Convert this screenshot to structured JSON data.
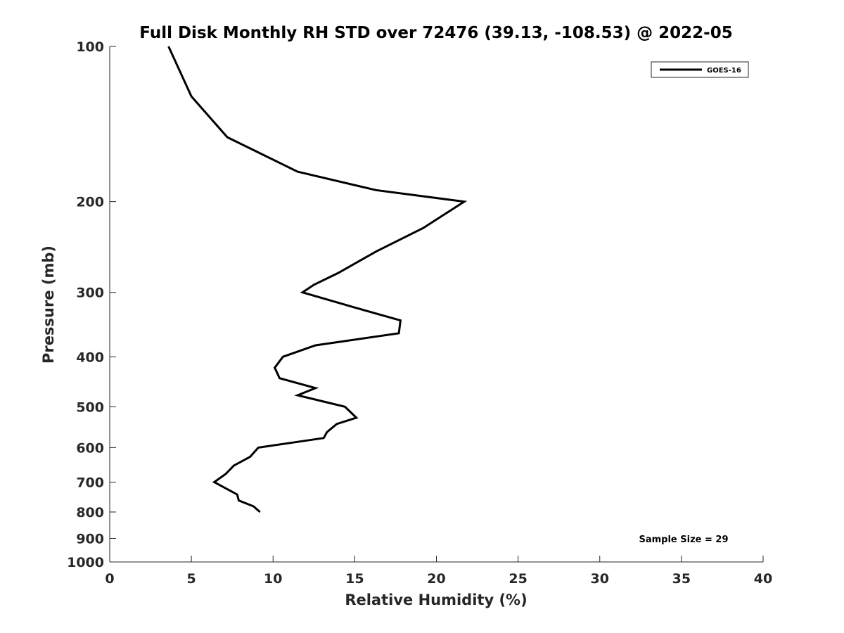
{
  "chart_data": {
    "type": "line",
    "title": "Full Disk Monthly RH STD over 72476 (39.13, -108.53) @ 2022-05",
    "xlabel": "Relative Humidity (%)",
    "ylabel": "Pressure (mb)",
    "xlim": [
      0,
      40
    ],
    "ylim": [
      100,
      1000
    ],
    "y_scale": "log",
    "y_reversed": true,
    "x_ticks": [
      0,
      5,
      10,
      15,
      20,
      25,
      30,
      35,
      40
    ],
    "y_ticks": [
      100,
      200,
      300,
      400,
      500,
      600,
      700,
      800,
      900,
      1000
    ],
    "grid": false,
    "legend_position": "top-right",
    "series": [
      {
        "name": "GOES-16",
        "color": "#000000",
        "points": [
          [
            3.6,
            100
          ],
          [
            5.0,
            125
          ],
          [
            7.2,
            150
          ],
          [
            11.5,
            175
          ],
          [
            16.3,
            190
          ],
          [
            21.7,
            200
          ],
          [
            19.2,
            225
          ],
          [
            16.3,
            250
          ],
          [
            14.0,
            275
          ],
          [
            12.5,
            290
          ],
          [
            11.8,
            300
          ],
          [
            15.6,
            325
          ],
          [
            17.8,
            340
          ],
          [
            17.7,
            360
          ],
          [
            12.6,
            380
          ],
          [
            10.6,
            400
          ],
          [
            10.1,
            420
          ],
          [
            10.4,
            440
          ],
          [
            12.6,
            460
          ],
          [
            11.5,
            475
          ],
          [
            14.4,
            500
          ],
          [
            15.1,
            525
          ],
          [
            13.9,
            540
          ],
          [
            13.3,
            560
          ],
          [
            13.1,
            575
          ],
          [
            9.1,
            600
          ],
          [
            8.6,
            625
          ],
          [
            7.6,
            650
          ],
          [
            7.1,
            675
          ],
          [
            6.4,
            700
          ],
          [
            7.8,
            740
          ],
          [
            7.9,
            760
          ],
          [
            8.8,
            780
          ],
          [
            9.2,
            800
          ]
        ]
      }
    ],
    "annotations": [
      "Sample Size = 29"
    ]
  }
}
